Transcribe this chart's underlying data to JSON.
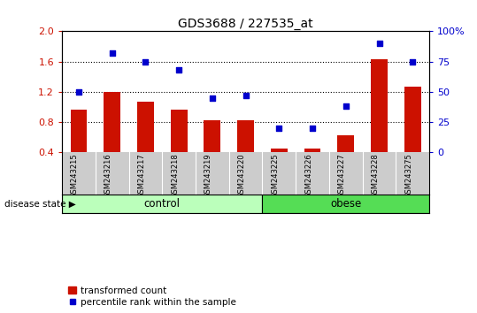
{
  "title": "GDS3688 / 227535_at",
  "samples": [
    "GSM243215",
    "GSM243216",
    "GSM243217",
    "GSM243218",
    "GSM243219",
    "GSM243220",
    "GSM243225",
    "GSM243226",
    "GSM243227",
    "GSM243228",
    "GSM243275"
  ],
  "transformed_count": [
    0.97,
    1.2,
    1.07,
    0.97,
    0.82,
    0.82,
    0.45,
    0.45,
    0.62,
    1.63,
    1.27
  ],
  "percentile_rank": [
    50,
    82,
    75,
    68,
    45,
    47,
    20,
    20,
    38,
    90,
    75
  ],
  "bar_color": "#cc1100",
  "dot_color": "#0000cc",
  "left_ylim": [
    0.4,
    2.0
  ],
  "right_ylim": [
    0,
    100
  ],
  "left_yticks": [
    0.4,
    0.8,
    1.2,
    1.6,
    2.0
  ],
  "right_yticks": [
    0,
    25,
    50,
    75,
    100
  ],
  "right_yticklabels": [
    "0",
    "25",
    "50",
    "75",
    "100%"
  ],
  "dotted_lines": [
    0.8,
    1.2,
    1.6
  ],
  "n_control": 6,
  "n_obese": 5,
  "control_color": "#bbffbb",
  "obese_color": "#55dd55",
  "label_color_left": "#cc1100",
  "label_color_right": "#0000cc",
  "legend_bar_label": "transformed count",
  "legend_dot_label": "percentile rank within the sample",
  "disease_state_label": "disease state",
  "control_label": "control",
  "obese_label": "obese",
  "background_gray": "#cccccc",
  "bar_width": 0.5
}
